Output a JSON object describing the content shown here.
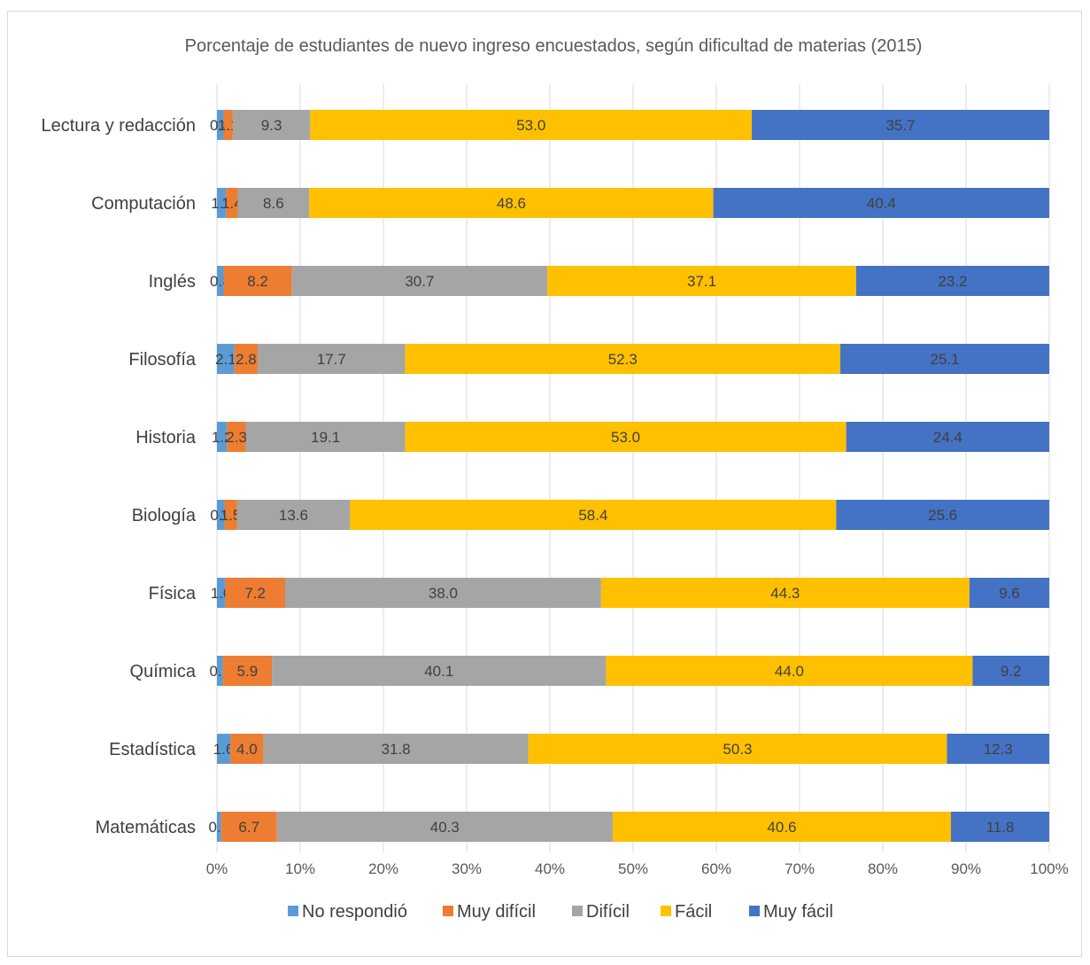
{
  "chart_data": {
    "type": "bar",
    "orientation": "horizontal",
    "stacked": "percent",
    "title": "Porcentaje de estudiantes de nuevo ingreso encuestados, según dificultad de materias (2015)",
    "categories": [
      "Lectura y redacción",
      "Computación",
      "Inglés",
      "Filosofía",
      "Historia",
      "Biología",
      "Física",
      "Química",
      "Estadística",
      "Matemáticas"
    ],
    "series": [
      {
        "name": "No respondió",
        "color": "#5B9BD5",
        "values": [
          0.8,
          1.1,
          0.8,
          2.1,
          1.2,
          0.9,
          1.0,
          0.7,
          1.6,
          0.5
        ],
        "labels": [
          "0.8",
          "1.1",
          "0.8",
          "2.1",
          "1.2",
          "0.9",
          "1.0",
          "0.7",
          "1.6",
          "0.5"
        ]
      },
      {
        "name": "Muy difícil",
        "color": "#ED7D31",
        "values": [
          1.1,
          1.4,
          8.2,
          2.8,
          2.3,
          1.5,
          7.2,
          5.9,
          4.0,
          6.7
        ],
        "labels": [
          "1.1",
          "1.4",
          "8.2",
          "2.8",
          "2.3",
          "1.5",
          "7.2",
          "5.9",
          "4.0",
          "6.7"
        ]
      },
      {
        "name": "Difícil",
        "color": "#A5A5A5",
        "values": [
          9.3,
          8.6,
          30.7,
          17.7,
          19.1,
          13.6,
          38.0,
          40.1,
          31.8,
          40.3
        ],
        "labels": [
          "9.3",
          "8.6",
          "30.7",
          "17.7",
          "19.1",
          "13.6",
          "38.0",
          "40.1",
          "31.8",
          "40.3"
        ]
      },
      {
        "name": "Fácil",
        "color": "#FFC000",
        "values": [
          53.0,
          48.6,
          37.1,
          52.3,
          53.0,
          58.4,
          44.3,
          44.0,
          50.3,
          40.6
        ],
        "labels": [
          "53.0",
          "48.6",
          "37.1",
          "52.3",
          "53.0",
          "58.4",
          "44.3",
          "44.0",
          "50.3",
          "40.6"
        ]
      },
      {
        "name": "Muy fácil",
        "color": "#4472C4",
        "values": [
          35.7,
          40.4,
          23.2,
          25.1,
          24.4,
          25.6,
          9.6,
          9.2,
          12.3,
          11.8
        ],
        "labels": [
          "35.7",
          "40.4",
          "23.2",
          "25.1",
          "24.4",
          "25.6",
          "9.6",
          "9.2",
          "12.3",
          "11.8"
        ]
      }
    ],
    "xticks": [
      "0%",
      "10%",
      "20%",
      "30%",
      "40%",
      "50%",
      "60%",
      "70%",
      "80%",
      "90%",
      "100%"
    ],
    "xlim": [
      0,
      100
    ],
    "grid": "vertical",
    "legend_position": "bottom",
    "gridline_color": "#d9d9d9"
  }
}
